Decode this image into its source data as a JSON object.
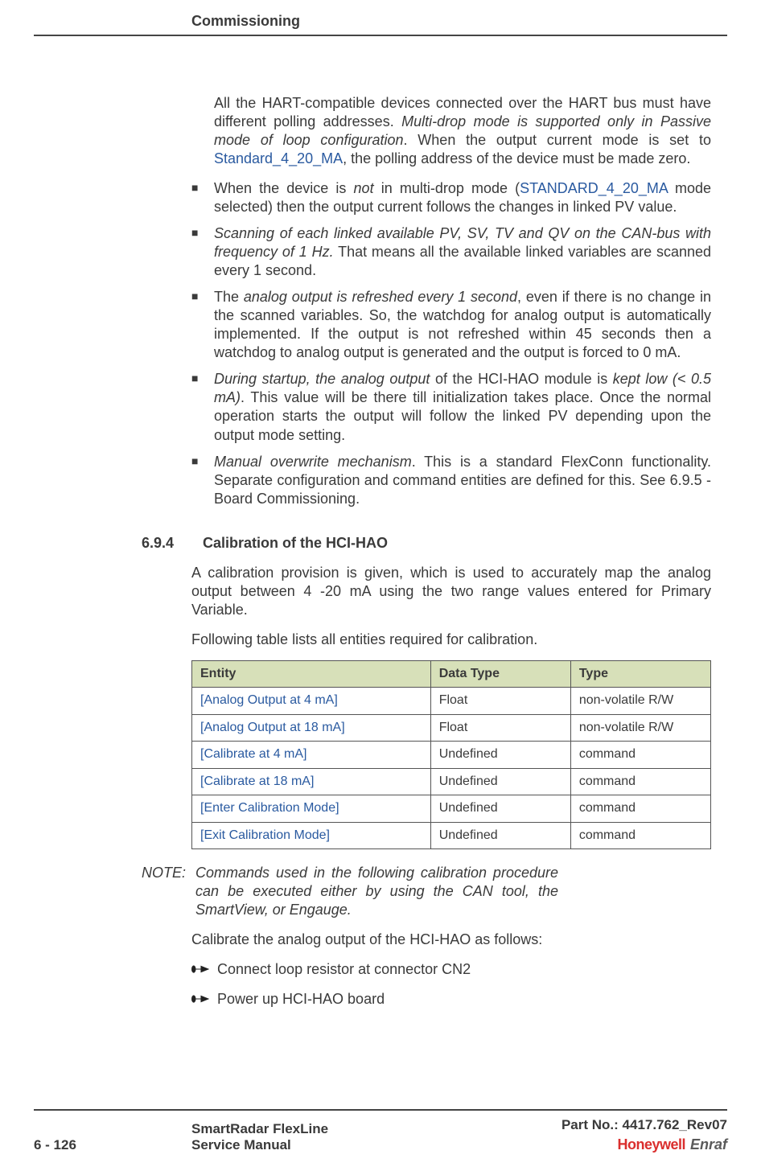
{
  "header": {
    "section": "Commissioning"
  },
  "intro": {
    "p1_a": "All the HART-compatible devices connected over the HART bus must have different polling addresses. ",
    "p1_b": "Multi-drop mode is supported only in Passive mode of loop configuration",
    "p1_c": ". When the output current mode is set to ",
    "p1_d": "Standard_4_20_MA",
    "p1_e": ", the polling address of the device must be made zero."
  },
  "bullets": [
    {
      "a": "When the device is ",
      "i1": "not",
      "b": " in multi-drop mode (",
      "link": "STANDARD_4_20_MA",
      "c": " mode selected) then the output current follows the changes in linked PV value."
    },
    {
      "i1": "Scanning of each linked available PV, SV, TV and QV on the CAN-bus with frequency of 1 Hz.",
      "b": " That means all the available linked variables are scanned every 1 second."
    },
    {
      "a": "The ",
      "i1": "analog output is refreshed every 1 second",
      "b": ", even if there is no change in the scanned variables. So, the watchdog for analog output is automatically implemented. If the output is not refreshed within 45 seconds then a watchdog to analog output is generated and the output is forced to 0 mA."
    },
    {
      "i1": "During startup, the analog output",
      "a2": " of the HCI-HAO module is ",
      "i2": "kept low (< 0.5 mA)",
      "b": ". This value will be there till initialization takes place. Once the normal operation starts the output will follow the linked PV depending upon the output mode setting."
    },
    {
      "i1": "Manual overwrite mechanism",
      "b": ". This is a standard FlexConn functionality. Separate configuration and command entities are defined for this. See 6.9.5 - Board Commissioning."
    }
  ],
  "section": {
    "num": "6.9.4",
    "title": "Calibration of the HCI-HAO"
  },
  "calib": {
    "p1": "A calibration provision is given, which is used to accurately map the analog output between 4 -20 mA using the two range values entered for Primary Variable.",
    "p2": "Following table lists all entities required for calibration."
  },
  "table": {
    "headers": [
      "Entity",
      "Data Type",
      "Type"
    ],
    "rows": [
      [
        "[Analog Output at 4 mA]",
        "Float",
        "non-volatile R/W"
      ],
      [
        "[Analog Output at 18 mA]",
        "Float",
        "non-volatile R/W"
      ],
      [
        "[Calibrate at 4 mA]",
        "Undefined",
        "command"
      ],
      [
        "[Calibrate at 18 mA]",
        "Undefined",
        "command"
      ],
      [
        "[Enter Calibration Mode]",
        "Undefined",
        "command"
      ],
      [
        "[Exit Calibration Mode]",
        "Undefined",
        "command"
      ]
    ],
    "col_widths": [
      "46%",
      "27%",
      "27%"
    ],
    "header_bg": "#d7e0b9",
    "border_color": "#555555",
    "entity_color": "#2a5aa0"
  },
  "note": {
    "label": "NOTE:",
    "text": "Commands used in the following calibration procedure can be executed either by using the CAN tool, the SmartView, or Engauge."
  },
  "calibrate_intro": "Calibrate the analog output of the HCI-HAO as follows:",
  "steps": [
    "Connect loop resistor at connector CN2",
    "Power up HCI-HAO board"
  ],
  "footer": {
    "page": "6 - 126",
    "mid1": "SmartRadar FlexLine",
    "mid2": "Service Manual",
    "pn": "Part No.: 4417.762_Rev07",
    "brand1": "Honeywell",
    "brand2": "Enraf"
  }
}
